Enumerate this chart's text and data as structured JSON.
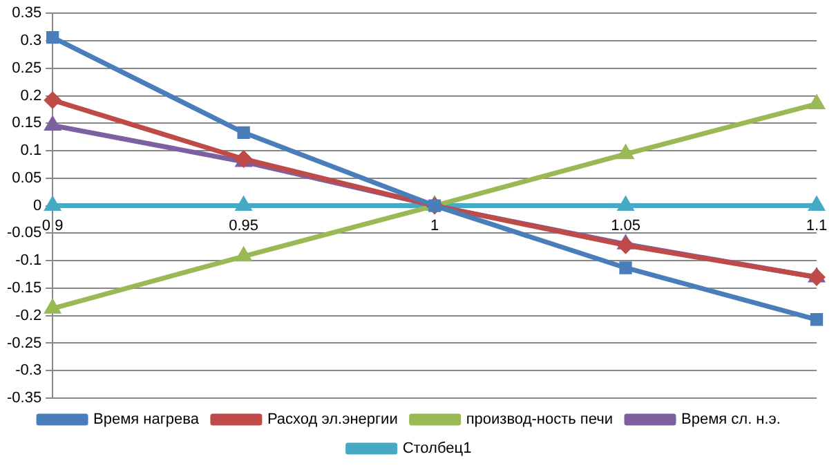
{
  "chart_data": {
    "type": "line",
    "categories": [
      "0.9",
      "0.95",
      "1",
      "1.05",
      "1.1"
    ],
    "series": [
      {
        "name": "Время нагрева",
        "color": "#4a7ebb",
        "marker": "square",
        "values": [
          0.306,
          0.133,
          0,
          -0.113,
          -0.207
        ]
      },
      {
        "name": "Расход эл.энергии",
        "color": "#be4b48",
        "marker": "diamond",
        "values": [
          0.192,
          0.085,
          0,
          -0.072,
          -0.13
        ]
      },
      {
        "name": "производ-ность печи",
        "color": "#98b954",
        "marker": "triangle",
        "values": [
          -0.187,
          -0.092,
          0,
          0.094,
          0.185
        ]
      },
      {
        "name": "Время сл. н.э.",
        "color": "#7d60a0",
        "marker": "triangle",
        "values": [
          0.146,
          0.08,
          0,
          -0.07,
          -0.13
        ]
      },
      {
        "name": "Столбец1",
        "color": "#46aac5",
        "marker": "triangle",
        "values": [
          0,
          0,
          0,
          0,
          0
        ]
      }
    ],
    "ylim": [
      -0.35,
      0.35
    ],
    "yticks": [
      -0.35,
      -0.3,
      -0.25,
      -0.2,
      -0.15,
      -0.1,
      -0.05,
      0,
      0.05,
      0.1,
      0.15,
      0.2,
      0.25,
      0.3,
      0.35
    ],
    "grid": "y",
    "legend": "bottom"
  }
}
